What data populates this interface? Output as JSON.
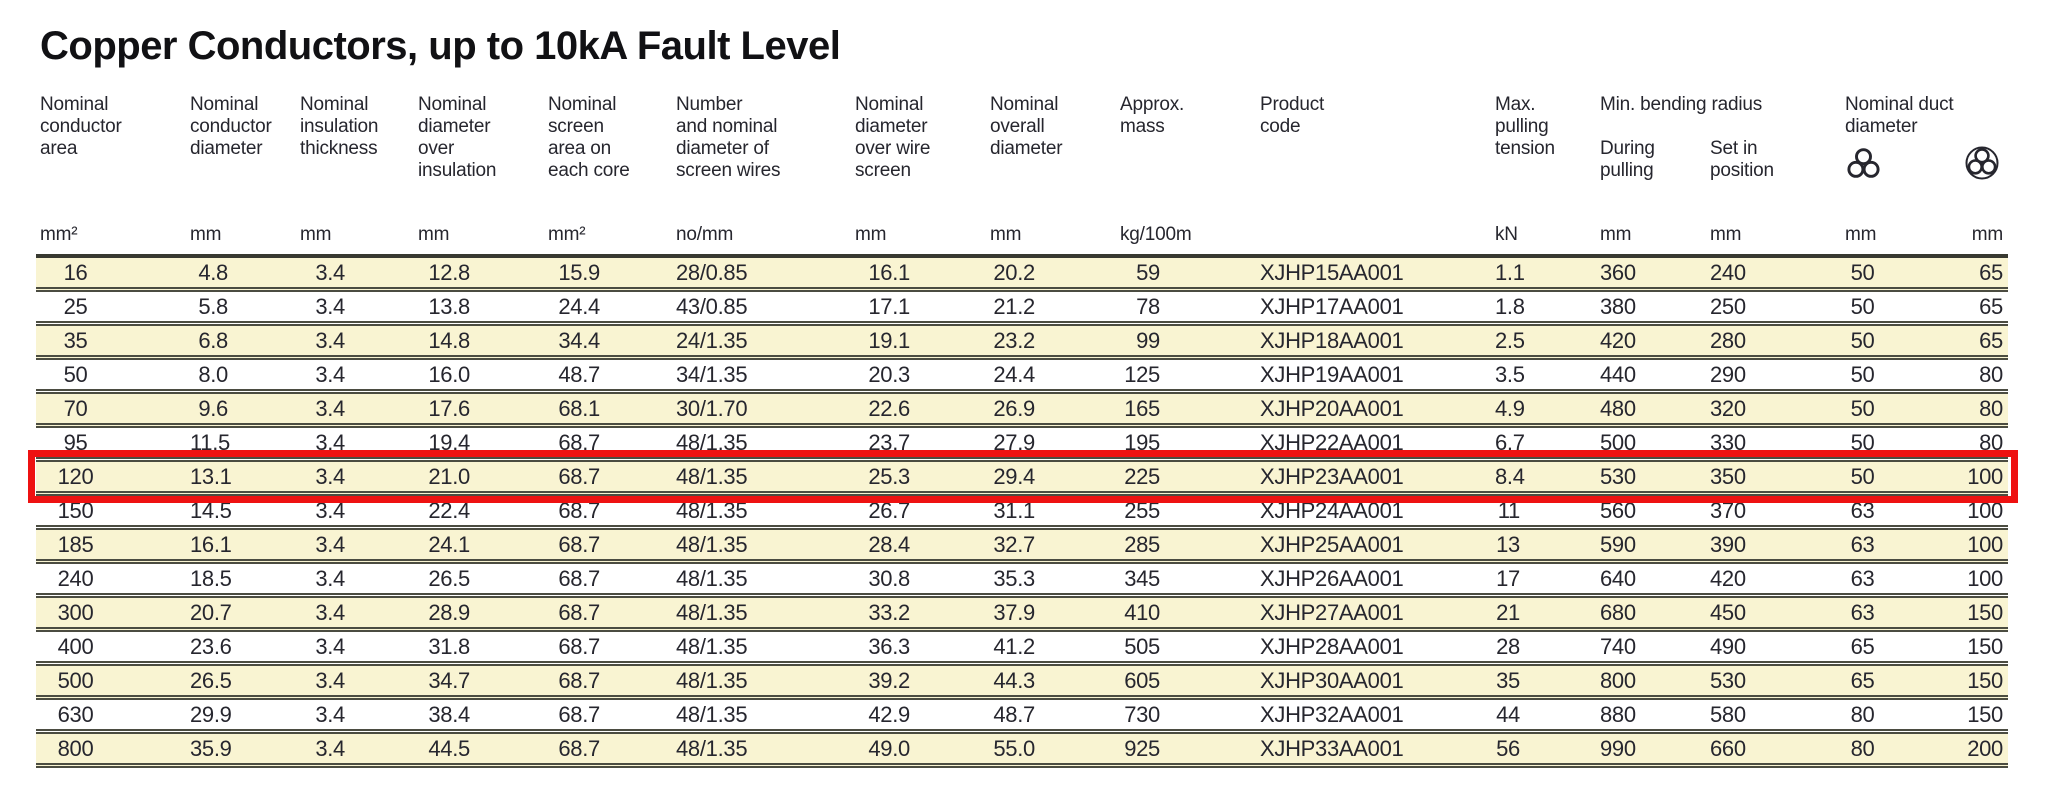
{
  "title": "Copper Conductors, up to 10kA Fault Level",
  "highlight_color": "#ee1111",
  "colors": {
    "row_stripe": "#f9f4d2",
    "row_rule": "#4b4c41",
    "text": "#26262e"
  },
  "icons": {
    "trefoil": "trefoil-ducts-icon",
    "single_duct": "single-duct-icon"
  },
  "table": {
    "highlighted_row_index": 6,
    "column_groups": [
      {
        "label": "Min. bending radius"
      },
      {
        "label": "Nominal duct diameter"
      }
    ],
    "columns": [
      {
        "lines": [
          "Nominal",
          "conductor",
          "area"
        ],
        "unit": "mm²"
      },
      {
        "lines": [
          "Nominal",
          "conductor",
          "diameter"
        ],
        "unit": "mm"
      },
      {
        "lines": [
          "Nominal",
          "insulation",
          "thickness"
        ],
        "unit": "mm"
      },
      {
        "lines": [
          "Nominal",
          "diameter",
          "over",
          "insulation"
        ],
        "unit": "mm"
      },
      {
        "lines": [
          "Nominal",
          "screen",
          "area on",
          "each core"
        ],
        "unit": "mm²"
      },
      {
        "lines": [
          "Number",
          "and nominal",
          "diameter of",
          "screen wires"
        ],
        "unit": "no/mm"
      },
      {
        "lines": [
          "Nominal",
          "diameter",
          "over wire",
          "screen"
        ],
        "unit": "mm"
      },
      {
        "lines": [
          "Nominal",
          "overall",
          "diameter"
        ],
        "unit": "mm"
      },
      {
        "lines": [
          "Approx.",
          "mass"
        ],
        "unit": "kg/100m"
      },
      {
        "lines": [
          "Product",
          "code"
        ],
        "unit": ""
      },
      {
        "lines": [
          "Max.",
          "pulling",
          "tension"
        ],
        "unit": "kN"
      },
      {
        "lines": [
          "During",
          "pulling"
        ],
        "unit": "mm"
      },
      {
        "lines": [
          "Set in",
          "position"
        ],
        "unit": "mm"
      },
      {
        "icon": "trefoil-ducts-icon",
        "unit": "mm"
      },
      {
        "icon": "single-duct-icon",
        "unit": "mm"
      }
    ],
    "rows": [
      [
        "16",
        "4.8",
        "3.4",
        "12.8",
        "15.9",
        "28/0.85",
        "16.1",
        "20.2",
        "59",
        "XJHP15AA001",
        "1.1",
        "360",
        "240",
        "50",
        "65"
      ],
      [
        "25",
        "5.8",
        "3.4",
        "13.8",
        "24.4",
        "43/0.85",
        "17.1",
        "21.2",
        "78",
        "XJHP17AA001",
        "1.8",
        "380",
        "250",
        "50",
        "65"
      ],
      [
        "35",
        "6.8",
        "3.4",
        "14.8",
        "34.4",
        "24/1.35",
        "19.1",
        "23.2",
        "99",
        "XJHP18AA001",
        "2.5",
        "420",
        "280",
        "50",
        "65"
      ],
      [
        "50",
        "8.0",
        "3.4",
        "16.0",
        "48.7",
        "34/1.35",
        "20.3",
        "24.4",
        "125",
        "XJHP19AA001",
        "3.5",
        "440",
        "290",
        "50",
        "80"
      ],
      [
        "70",
        "9.6",
        "3.4",
        "17.6",
        "68.1",
        "30/1.70",
        "22.6",
        "26.9",
        "165",
        "XJHP20AA001",
        "4.9",
        "480",
        "320",
        "50",
        "80"
      ],
      [
        "95",
        "11.5",
        "3.4",
        "19.4",
        "68.7",
        "48/1.35",
        "23.7",
        "27.9",
        "195",
        "XJHP22AA001",
        "6.7",
        "500",
        "330",
        "50",
        "80"
      ],
      [
        "120",
        "13.1",
        "3.4",
        "21.0",
        "68.7",
        "48/1.35",
        "25.3",
        "29.4",
        "225",
        "XJHP23AA001",
        "8.4",
        "530",
        "350",
        "50",
        "100"
      ],
      [
        "150",
        "14.5",
        "3.4",
        "22.4",
        "68.7",
        "48/1.35",
        "26.7",
        "31.1",
        "255",
        "XJHP24AA001",
        "11",
        "560",
        "370",
        "63",
        "100"
      ],
      [
        "185",
        "16.1",
        "3.4",
        "24.1",
        "68.7",
        "48/1.35",
        "28.4",
        "32.7",
        "285",
        "XJHP25AA001",
        "13",
        "590",
        "390",
        "63",
        "100"
      ],
      [
        "240",
        "18.5",
        "3.4",
        "26.5",
        "68.7",
        "48/1.35",
        "30.8",
        "35.3",
        "345",
        "XJHP26AA001",
        "17",
        "640",
        "420",
        "63",
        "100"
      ],
      [
        "300",
        "20.7",
        "3.4",
        "28.9",
        "68.7",
        "48/1.35",
        "33.2",
        "37.9",
        "410",
        "XJHP27AA001",
        "21",
        "680",
        "450",
        "63",
        "150"
      ],
      [
        "400",
        "23.6",
        "3.4",
        "31.8",
        "68.7",
        "48/1.35",
        "36.3",
        "41.2",
        "505",
        "XJHP28AA001",
        "28",
        "740",
        "490",
        "65",
        "150"
      ],
      [
        "500",
        "26.5",
        "3.4",
        "34.7",
        "68.7",
        "48/1.35",
        "39.2",
        "44.3",
        "605",
        "XJHP30AA001",
        "35",
        "800",
        "530",
        "65",
        "150"
      ],
      [
        "630",
        "29.9",
        "3.4",
        "38.4",
        "68.7",
        "48/1.35",
        "42.9",
        "48.7",
        "730",
        "XJHP32AA001",
        "44",
        "880",
        "580",
        "80",
        "150"
      ],
      [
        "800",
        "35.9",
        "3.4",
        "44.5",
        "68.7",
        "48/1.35",
        "49.0",
        "55.0",
        "925",
        "XJHP33AA001",
        "56",
        "990",
        "660",
        "80",
        "200"
      ]
    ]
  }
}
